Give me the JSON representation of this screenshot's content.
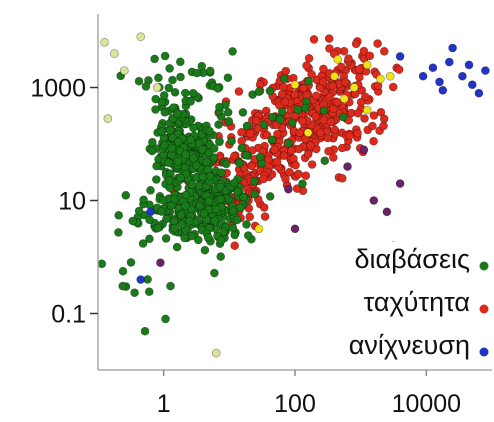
{
  "chart_data": {
    "type": "scatter",
    "title": "",
    "xlabel": "",
    "ylabel": "",
    "xscale": "log",
    "yscale": "log",
    "xlim": [
      0.1,
      100000
    ],
    "ylim": [
      0.01,
      20000
    ],
    "xticks": [
      {
        "value": 1,
        "label": "1"
      },
      {
        "value": 100,
        "label": "100"
      },
      {
        "value": 10000,
        "label": "10000"
      }
    ],
    "yticks": [
      {
        "value": 0.1,
        "label": "0.1"
      },
      {
        "value": 10,
        "label": "10"
      },
      {
        "value": 1000,
        "label": "1000"
      }
    ],
    "grid": false,
    "legend_position": "bottom-right",
    "series": [
      {
        "name": "διαβάσεις",
        "color": "#1a7a1a",
        "clusters": [
          {
            "cx": 0.3,
            "cy": 1.8,
            "sx": 0.22,
            "sy": 0.3,
            "n": 260
          },
          {
            "cx": 0.75,
            "cy": 1.0,
            "sx": 0.3,
            "sy": 0.38,
            "n": 230
          },
          {
            "cx": 0.15,
            "cy": 0.7,
            "sx": 0.35,
            "sy": 0.25,
            "n": 80
          },
          {
            "cx": 0.4,
            "cy": 2.9,
            "sx": 0.35,
            "sy": 0.35,
            "n": 60
          },
          {
            "cx": 1.6,
            "cy": 2.3,
            "sx": 0.55,
            "sy": 0.5,
            "n": 30
          },
          {
            "cx": -0.3,
            "cy": -0.5,
            "sx": 0.35,
            "sy": 0.5,
            "n": 12
          }
        ]
      },
      {
        "name": "ταχύτητα",
        "color": "#dd2a1c",
        "clusters": [
          {
            "cx": 2.3,
            "cy": 2.6,
            "sx": 0.45,
            "sy": 0.35,
            "n": 260
          },
          {
            "cx": 1.5,
            "cy": 1.8,
            "sx": 0.45,
            "sy": 0.35,
            "n": 140
          },
          {
            "cx": 1.0,
            "cy": 1.1,
            "sx": 0.4,
            "sy": 0.35,
            "n": 70
          },
          {
            "cx": 2.8,
            "cy": 3.3,
            "sx": 0.3,
            "sy": 0.25,
            "n": 50
          }
        ]
      },
      {
        "name": "ανίχνευση",
        "color": "#2234c8",
        "points": [
          [
            4.1,
            3.35
          ],
          [
            4.2,
            3.1
          ],
          [
            4.35,
            3.45
          ],
          [
            4.55,
            3.2
          ],
          [
            4.7,
            3.05
          ],
          [
            4.9,
            3.3
          ],
          [
            5.0,
            3.6
          ],
          [
            4.4,
            3.7
          ],
          [
            4.8,
            2.9
          ],
          [
            3.95,
            3.2
          ],
          [
            4.25,
            2.95
          ],
          [
            5.2,
            2.7
          ],
          [
            3.6,
            3.55
          ],
          [
            4.65,
            3.4
          ],
          [
            -0.2,
            0.8
          ],
          [
            -0.35,
            -0.4
          ]
        ]
      },
      {
        "color": "#f2e21a",
        "points": [
          [
            2.6,
            3.2
          ],
          [
            2.9,
            3.0
          ],
          [
            3.1,
            3.4
          ],
          [
            3.3,
            3.15
          ],
          [
            2.2,
            2.2
          ],
          [
            2.75,
            2.8
          ],
          [
            3.45,
            3.2
          ],
          [
            2.0,
            3.05
          ],
          [
            3.1,
            2.6
          ],
          [
            1.45,
            0.5
          ],
          [
            2.65,
            3.5
          ]
        ]
      },
      {
        "color": "#dde49a",
        "points": [
          [
            -0.9,
            3.8
          ],
          [
            -0.6,
            3.3
          ],
          [
            -0.75,
            3.6
          ],
          [
            -0.35,
            3.9
          ],
          [
            -0.85,
            2.45
          ],
          [
            0.8,
            -1.7
          ],
          [
            3.5,
            0.2
          ],
          [
            -0.1,
            3.0
          ]
        ]
      },
      {
        "color": "#6b2266",
        "points": [
          [
            3.2,
            1.0
          ],
          [
            3.4,
            0.8
          ],
          [
            2.8,
            1.6
          ],
          [
            3.6,
            1.3
          ],
          [
            2.0,
            0.5
          ],
          [
            -0.05,
            -0.1
          ],
          [
            3.05,
            1.9
          ],
          [
            1.9,
            1.2
          ]
        ]
      }
    ]
  }
}
